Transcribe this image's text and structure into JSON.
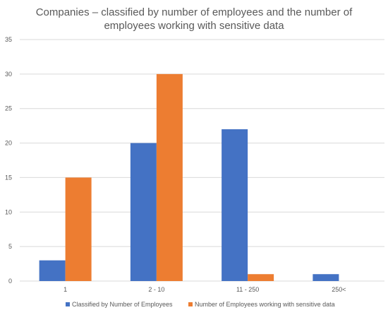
{
  "chart_data": {
    "type": "bar",
    "title_lines": [
      "Companies – classified by number of employees and the number of",
      "employees working with sensitive data"
    ],
    "categories": [
      "1",
      "2 - 10",
      "11 - 250",
      "250<"
    ],
    "series": [
      {
        "name": "Classified by Number of Employees",
        "values": [
          3,
          20,
          22,
          1
        ],
        "color": "#4472c4"
      },
      {
        "name": "Number of Employees working with sensitive data",
        "values": [
          15,
          30,
          1,
          0
        ],
        "color": "#ed7d31"
      }
    ],
    "ylim": [
      0,
      35
    ],
    "yticks": [
      0,
      5,
      10,
      15,
      20,
      25,
      30,
      35
    ],
    "grid": true,
    "legend_position": "bottom"
  }
}
